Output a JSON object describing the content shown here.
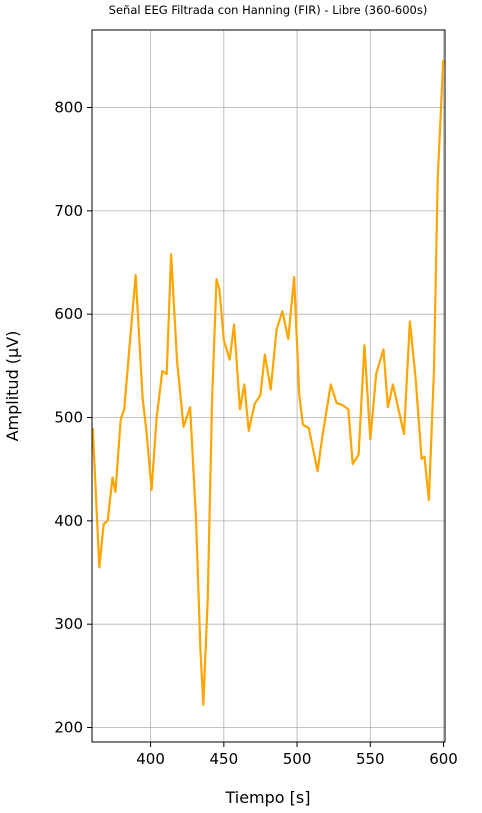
{
  "chart_data": {
    "type": "line",
    "title": "Señal EEG Filtrada con Hanning (FIR) - Libre (360-600s)",
    "xlabel": "Tiempo [s]",
    "ylabel": "Amplitud (µV)",
    "x": [
      360.5,
      365,
      368,
      370.7,
      374,
      376,
      379.6,
      382,
      386,
      389.8,
      394.6,
      397,
      400.7,
      404,
      408,
      411,
      414,
      418,
      422.5,
      427,
      431,
      434,
      436,
      439,
      442,
      445,
      447,
      450,
      454,
      457,
      461,
      464,
      467,
      471,
      475,
      478,
      482,
      486,
      490,
      494,
      498,
      501.5,
      504,
      508,
      514,
      517,
      523,
      527,
      531,
      535,
      538,
      542,
      546,
      550,
      554,
      559,
      562,
      565.5,
      570,
      573,
      577,
      581,
      585,
      587,
      590,
      593.5,
      596,
      599.8
    ],
    "values": [
      490,
      355,
      397,
      400,
      442,
      428,
      498,
      508,
      575,
      638,
      518,
      489,
      430,
      498,
      545,
      542,
      658,
      556,
      491,
      510,
      402,
      276,
      222,
      324,
      518,
      634,
      624,
      575,
      556,
      590,
      508,
      532,
      487,
      513,
      522,
      561,
      527,
      585,
      603,
      576,
      636,
      522,
      493,
      490,
      448,
      479,
      532,
      514,
      512,
      508,
      455,
      464,
      570,
      479,
      542,
      566,
      510,
      532,
      503,
      484,
      593,
      537,
      460,
      462,
      420,
      547,
      730,
      846
    ],
    "color": "#ffa500",
    "xlim": [
      360,
      601
    ],
    "ylim": [
      186,
      875
    ],
    "xticks": [
      400,
      450,
      500,
      550,
      600
    ],
    "yticks": [
      200,
      300,
      400,
      500,
      600,
      700,
      800
    ],
    "grid": true
  }
}
